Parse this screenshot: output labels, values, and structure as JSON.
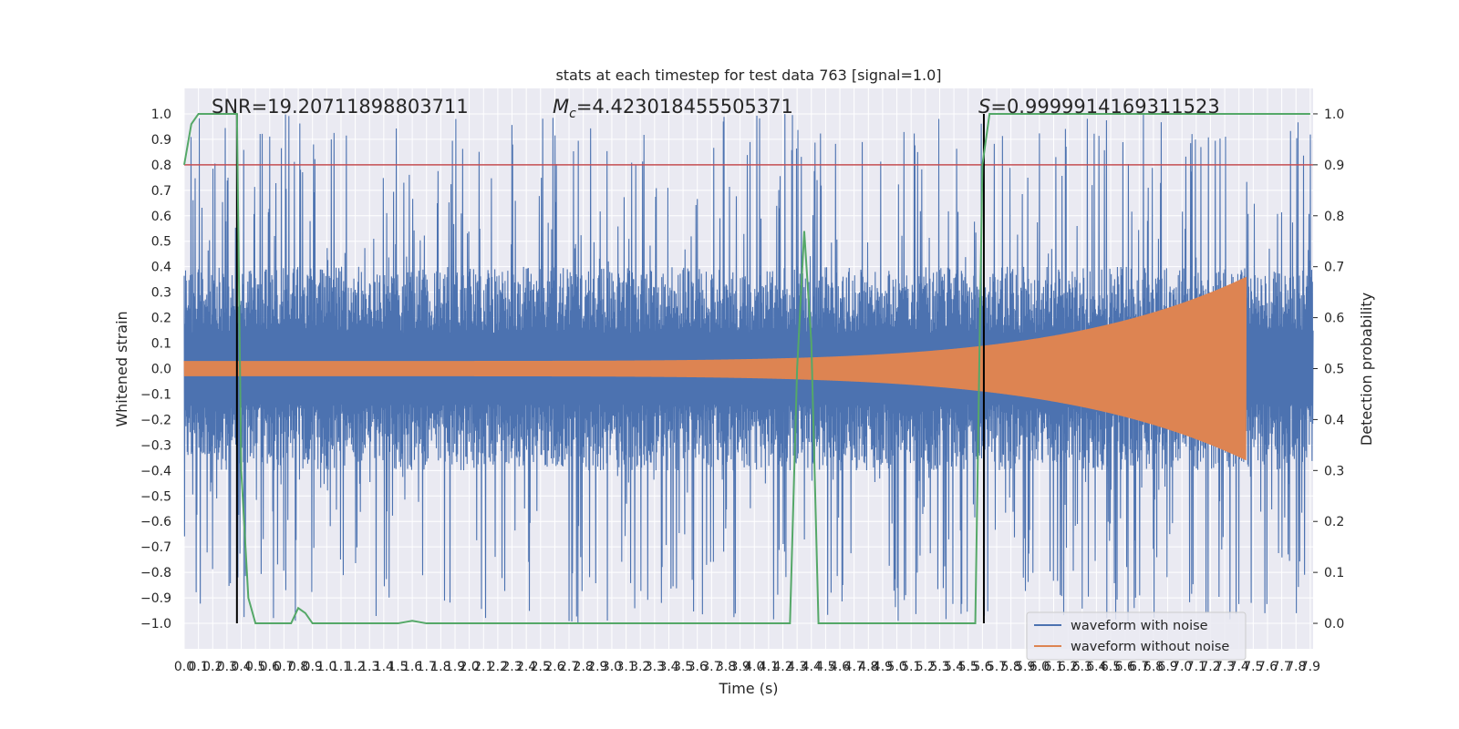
{
  "chart_data": {
    "type": "line",
    "title": "stats at each timestep for test data 763 [signal=1.0]",
    "xlabel": "Time (s)",
    "ylabel_left": "Whitened strain",
    "ylabel_right": "Detection probability",
    "xlim": [
      0.0,
      7.92
    ],
    "ylim_left": [
      -1.1,
      1.1
    ],
    "ylim_right": [
      -0.05,
      1.05
    ],
    "x_tick_labels": [
      "0.0",
      "0.1",
      "0.2",
      "0.3",
      "0.4",
      "0.5",
      "0.6",
      "0.7",
      "0.8",
      "0.9",
      "1.0",
      "1.1",
      "1.2",
      "1.3",
      "1.4",
      "1.5",
      "1.6",
      "1.7",
      "1.8",
      "1.9",
      "2.0",
      "2.1",
      "2.2",
      "2.3",
      "2.4",
      "2.5",
      "2.6",
      "2.7",
      "2.8",
      "2.9",
      "3.0",
      "3.1",
      "3.2",
      "3.3",
      "3.4",
      "3.5",
      "3.6",
      "3.7",
      "3.8",
      "3.9",
      "4.0",
      "4.1",
      "4.2",
      "4.3",
      "4.4",
      "4.5",
      "4.6",
      "4.7",
      "4.8",
      "4.9",
      "5.0",
      "5.1",
      "5.2",
      "5.3",
      "5.4",
      "5.5",
      "5.6",
      "5.7",
      "5.8",
      "5.9",
      "6.0",
      "6.1",
      "6.2",
      "6.3",
      "6.4",
      "6.5",
      "6.6",
      "6.7",
      "6.8",
      "6.9",
      "7.0",
      "7.1",
      "7.2",
      "7.3",
      "7.4",
      "7.5",
      "7.6",
      "7.7",
      "7.8",
      "7.9"
    ],
    "y_left_tick_labels": [
      "1.0",
      "0.9",
      "0.8",
      "0.7",
      "0.6",
      "0.5",
      "0.4",
      "0.3",
      "0.2",
      "0.1",
      "0.0",
      "−0.1",
      "−0.2",
      "−0.3",
      "−0.4",
      "−0.5",
      "−0.6",
      "−0.7",
      "−0.8",
      "−0.9",
      "−1.0"
    ],
    "y_right_tick_labels": [
      "1.0",
      "0.9",
      "0.8",
      "0.7",
      "0.6",
      "0.5",
      "0.4",
      "0.3",
      "0.2",
      "0.1",
      "0.0"
    ],
    "annotations": {
      "snr": "SNR=19.20711898803711",
      "mc_symbol": "M",
      "mc_subscript": "c",
      "mc_value": "=4.423018455505371",
      "s_symbol": "S",
      "s_value": "=0.9999914169311523"
    },
    "threshold": {
      "value": 0.9,
      "color": "#c44e52"
    },
    "vertical_markers": [
      0.37,
      5.61
    ],
    "series": [
      {
        "name": "waveform with noise",
        "color": "#4c72b0",
        "axis": "left",
        "kind": "noise",
        "amplitude_envelope": [
          -1.0,
          1.0
        ],
        "peak_max": 1.0,
        "peak_min": -1.0
      },
      {
        "name": "waveform without noise",
        "color": "#dd8452",
        "axis": "left",
        "kind": "chirp",
        "start_amplitude": 0.03,
        "end_amplitude": 0.36,
        "end_time": 7.45
      },
      {
        "name": "detection probability",
        "color": "#55a868",
        "axis": "right",
        "x": [
          0.0,
          0.05,
          0.1,
          0.15,
          0.2,
          0.25,
          0.3,
          0.35,
          0.37,
          0.4,
          0.45,
          0.5,
          0.55,
          0.6,
          0.65,
          0.7,
          0.75,
          0.8,
          0.85,
          0.9,
          0.95,
          1.0,
          1.5,
          1.6,
          1.7,
          2.0,
          3.0,
          4.0,
          4.2,
          4.25,
          4.3,
          4.35,
          4.4,
          4.45,
          4.5,
          4.6,
          5.0,
          5.5,
          5.55,
          5.6,
          5.65,
          5.7,
          5.8,
          6.0,
          7.0,
          7.9
        ],
        "y": [
          0.9,
          0.98,
          1.0,
          1.0,
          1.0,
          1.0,
          1.0,
          1.0,
          1.0,
          0.3,
          0.05,
          0.0,
          0.0,
          0.0,
          0.0,
          0.0,
          0.0,
          0.03,
          0.02,
          0.0,
          0.0,
          0.0,
          0.0,
          0.005,
          0.0,
          0.0,
          0.0,
          0.0,
          0.0,
          0.0,
          0.5,
          0.77,
          0.55,
          0.0,
          0.0,
          0.0,
          0.0,
          0.0,
          0.0,
          0.9,
          1.0,
          1.0,
          1.0,
          1.0,
          1.0,
          1.0
        ]
      }
    ],
    "legend": {
      "position": "bottom-right",
      "entries": [
        "waveform with noise",
        "waveform without noise"
      ]
    },
    "grid": true
  }
}
